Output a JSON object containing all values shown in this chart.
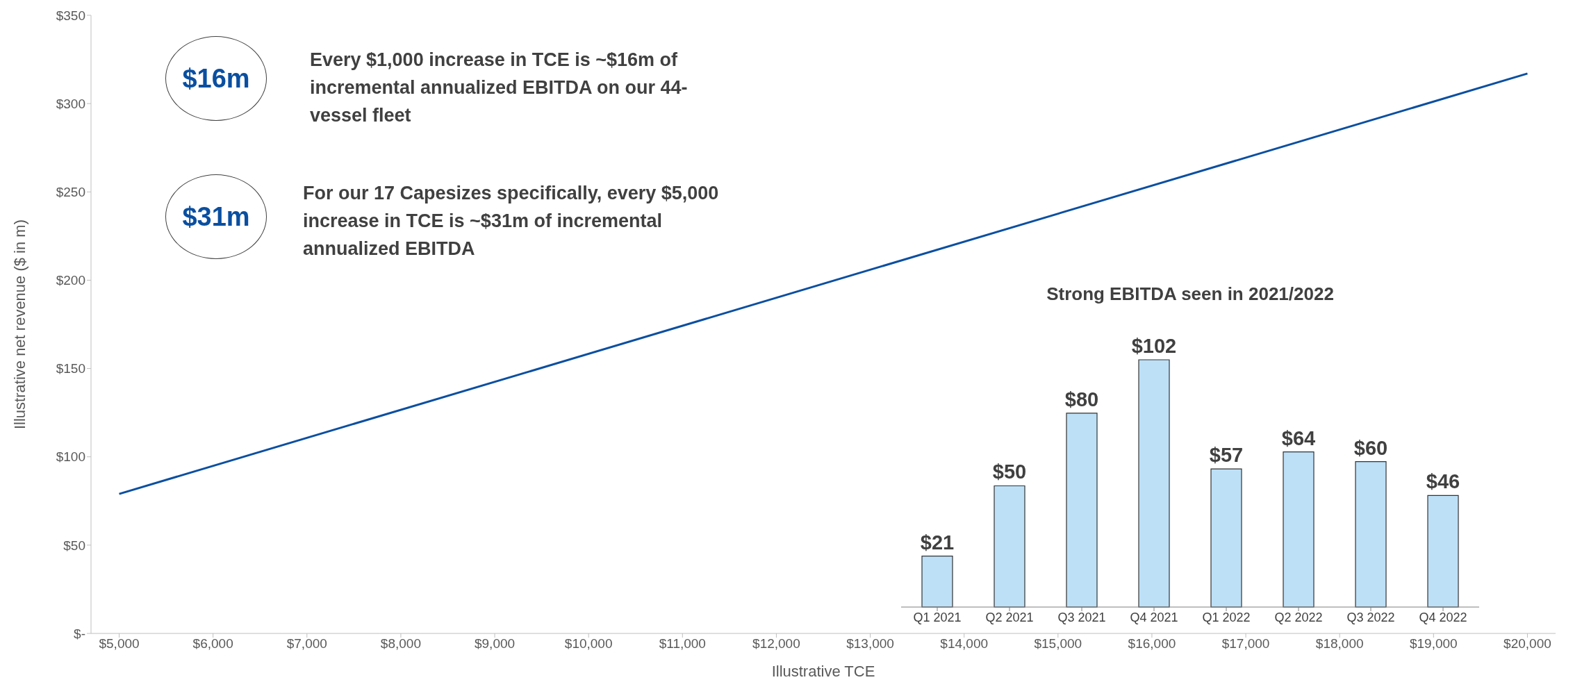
{
  "chart_data": [
    {
      "type": "line",
      "x": [
        5000,
        20000
      ],
      "xlabel": "Illustrative TCE",
      "ylabel": "Illustrative net revenue ($ in m)",
      "series": [
        {
          "color": "#0a4fa0",
          "values": [
            79,
            317
          ]
        }
      ],
      "xlim": [
        4700,
        20300
      ],
      "xticks": [
        {
          "value": 5000,
          "label": "$5,000"
        },
        {
          "value": 6000,
          "label": "$6,000"
        },
        {
          "value": 7000,
          "label": "$7,000"
        },
        {
          "value": 8000,
          "label": "$8,000"
        },
        {
          "value": 9000,
          "label": "$9,000"
        },
        {
          "value": 10000,
          "label": "$10,000"
        },
        {
          "value": 11000,
          "label": "$11,000"
        },
        {
          "value": 12000,
          "label": "$12,000"
        },
        {
          "value": 13000,
          "label": "$13,000"
        },
        {
          "value": 14000,
          "label": "$14,000"
        },
        {
          "value": 15000,
          "label": "$15,000"
        },
        {
          "value": 16000,
          "label": "$16,000"
        },
        {
          "value": 17000,
          "label": "$17,000"
        },
        {
          "value": 18000,
          "label": "$18,000"
        },
        {
          "value": 19000,
          "label": "$19,000"
        },
        {
          "value": 20000,
          "label": "$20,000"
        }
      ],
      "ylim": [
        0,
        350
      ],
      "yticks": [
        {
          "value": 0,
          "label": "$-"
        },
        {
          "value": 50,
          "label": "$50"
        },
        {
          "value": 100,
          "label": "$100"
        },
        {
          "value": 150,
          "label": "$150"
        },
        {
          "value": 200,
          "label": "$200"
        },
        {
          "value": 250,
          "label": "$250"
        },
        {
          "value": 300,
          "label": "$300"
        },
        {
          "value": 350,
          "label": "$350"
        }
      ],
      "grid": false,
      "legend": false,
      "marker": "none",
      "line_style": "solid",
      "annotations": [
        "$16m",
        "Every $1,000 increase in TCE is ~$16m of incremental annualized EBITDA on our 44-vessel fleet",
        "$31m",
        "For our 17 Capesizes specifically, every $5,000 increase in TCE is ~$31m of incremental annualized EBITDA"
      ]
    },
    {
      "type": "bar",
      "title": "Strong EBITDA seen in 2021/2022",
      "categories": [
        "Q1 2021",
        "Q2 2021",
        "Q3 2021",
        "Q4 2021",
        "Q1 2022",
        "Q2 2022",
        "Q3 2022",
        "Q4 2022"
      ],
      "values": [
        21,
        50,
        80,
        102,
        57,
        64,
        60,
        46
      ],
      "value_labels": [
        "$21",
        "$50",
        "$80",
        "$102",
        "$57",
        "$64",
        "$60",
        "$46"
      ],
      "color": "#bde0f7",
      "grid": false,
      "legend": false
    }
  ]
}
